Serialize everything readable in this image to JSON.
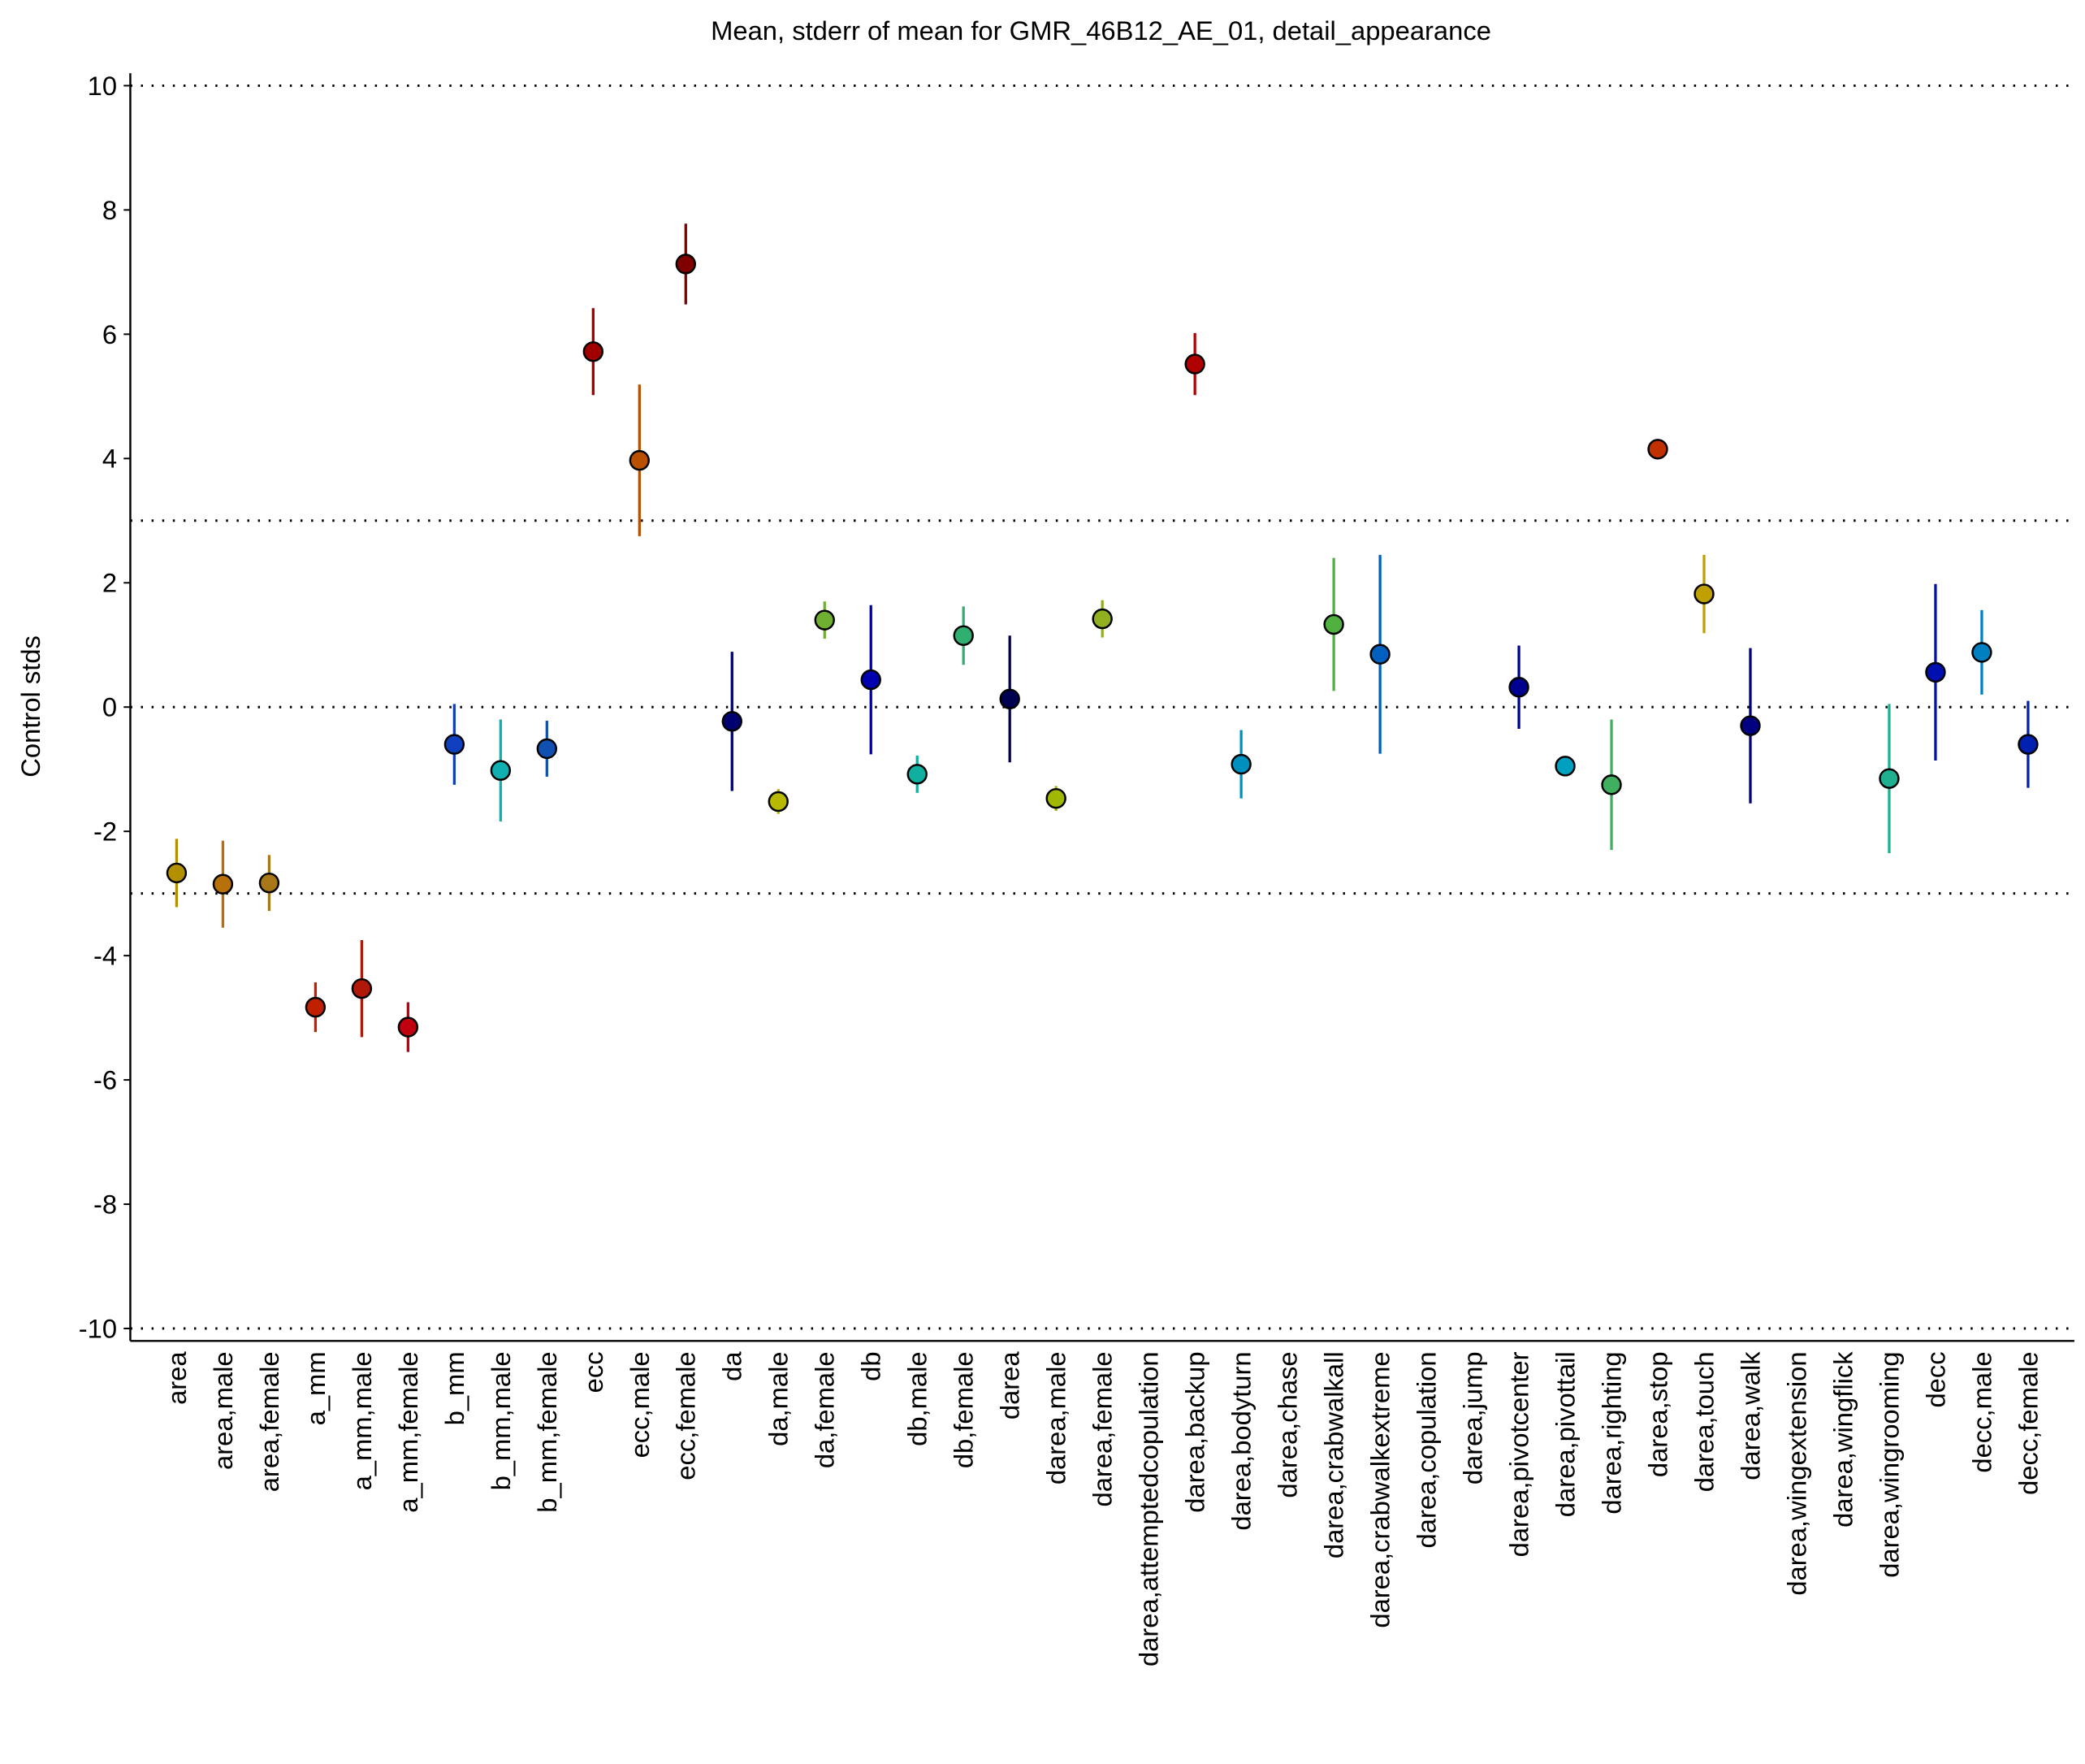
{
  "chart_data": {
    "type": "errorbar",
    "title": "Mean, stderr of mean for GMR_46B12_AE_01, detail_appearance",
    "y_label": "Control stds",
    "categories": [
      "area",
      "area,male",
      "area,female",
      "a_mm",
      "a_mm,male",
      "a_mm,female",
      "b_mm",
      "b_mm,male",
      "b_mm,female",
      "ecc",
      "ecc,male",
      "ecc,female",
      "da",
      "da,male",
      "da,female",
      "db",
      "db,male",
      "db,female",
      "darea",
      "darea,male",
      "darea,female",
      "darea,attemptedcopulation",
      "darea,backup",
      "darea,bodyturn",
      "darea,chase",
      "darea,crabwalkall",
      "darea,crabwalkextreme",
      "darea,copulation",
      "darea,jump",
      "darea,pivotcenter",
      "darea,pivottail",
      "darea,righting",
      "darea,stop",
      "darea,touch",
      "darea,walk",
      "darea,wingextension",
      "darea,wingflick",
      "darea,wingrooming",
      "decc",
      "decc,male",
      "decc,female"
    ],
    "values": [
      -2.67,
      -2.85,
      -2.83,
      -4.83,
      -4.53,
      -5.15,
      -0.6,
      -1.02,
      -0.67,
      5.72,
      3.97,
      7.13,
      -0.23,
      -1.52,
      1.4,
      0.44,
      -1.08,
      1.15,
      0.13,
      -1.47,
      1.42,
      null,
      5.52,
      -0.92,
      null,
      1.33,
      0.85,
      null,
      null,
      0.32,
      -0.95,
      -1.25,
      4.15,
      1.82,
      -0.3,
      null,
      null,
      -1.15,
      0.56,
      0.88,
      -0.6
    ],
    "errors": [
      0.55,
      0.7,
      0.45,
      0.4,
      0.78,
      0.4,
      0.65,
      0.82,
      0.45,
      0.7,
      1.22,
      0.65,
      1.12,
      0.2,
      0.3,
      1.2,
      0.3,
      0.47,
      1.02,
      0.2,
      0.3,
      null,
      0.5,
      0.55,
      null,
      1.07,
      1.6,
      null,
      null,
      0.67,
      0.1,
      1.05,
      0.05,
      0.63,
      1.25,
      null,
      null,
      1.2,
      1.42,
      0.68,
      0.7
    ],
    "colors": [
      "#b39000",
      "#b8700a",
      "#a87818",
      "#c02000",
      "#b01808",
      "#c00010",
      "#1040c0",
      "#10b0b0",
      "#1050b0",
      "#a00000",
      "#b85000",
      "#800000",
      "#000070",
      "#b8b800",
      "#70b030",
      "#0000b0",
      "#10b0a0",
      "#30b070",
      "#000050",
      "#a0b800",
      "#90b020",
      "#909090",
      "#b00000",
      "#0090c0",
      "#909090",
      "#50b040",
      "#0060c0",
      "#909090",
      "#909090",
      "#000090",
      "#00a0c0",
      "#40b060",
      "#c03000",
      "#c0a000",
      "#000080",
      "#909090",
      "#909090",
      "#20b090",
      "#0010b0",
      "#0080c0",
      "#0020b0"
    ],
    "ylim": [
      -10.2,
      10.2
    ],
    "yticks": [
      -10,
      -8,
      -6,
      -4,
      -2,
      0,
      2,
      4,
      6,
      8,
      10
    ],
    "hlines": [
      -10,
      -3,
      0,
      3,
      10
    ]
  }
}
